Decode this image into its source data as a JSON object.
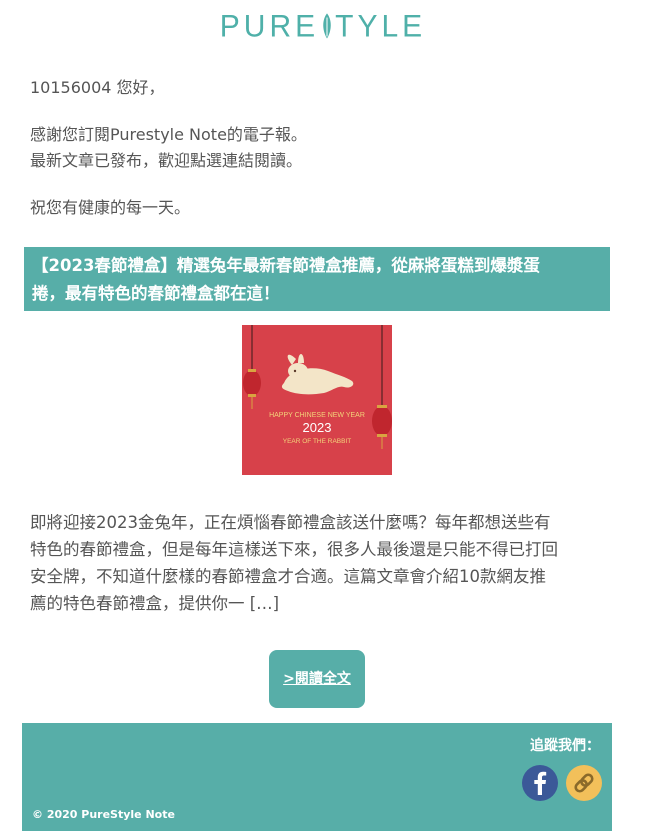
{
  "brand": {
    "logo_text_left": "PURE",
    "logo_text_right": "TYLE"
  },
  "greeting": "10156004 您好，",
  "intro": {
    "line1": "感謝您訂閱Purestyle Note的電子報。",
    "line2": "最新文章已發布，歡迎點選連結閱讀。"
  },
  "wish": "祝您有健康的每一天。",
  "article": {
    "title_line1": "【2023春節禮盒】精選兔年最新春節禮盒推薦，從麻將蛋糕到爆漿蛋",
    "title_line2": "捲，最有特色的春節禮盒都在這！",
    "image": {
      "line1": "HAPPY CHINESE NEW YEAR",
      "line2": "2023",
      "line3": "YEAR OF THE RABBIT"
    },
    "excerpt": [
      "即將迎接2023金兔年，正在煩惱春節禮盒該送什麼嗎？每年都想送些有",
      "特色的春節禮盒，但是每年這樣送下來，很多人最後還是只能不得已打回",
      "安全牌，不知道什麼樣的春節禮盒才合適。這篇文章會介紹10款網友推",
      "薦的特色春節禮盒，提供你一 […]"
    ],
    "read_more_label": ">閱讀全文"
  },
  "footer": {
    "follow_label": "追蹤我們：",
    "icons": [
      "facebook-icon",
      "link-icon"
    ],
    "copyright": "© 2020 PureStyle Note"
  },
  "colors": {
    "accent": "#57aea8",
    "thumb_bg": "#d7414a",
    "facebook": "#3b5998",
    "link": "#f2c05a"
  }
}
